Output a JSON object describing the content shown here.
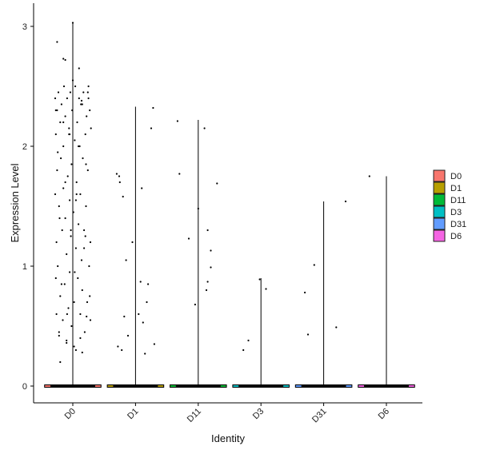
{
  "chart_data": {
    "type": "violin",
    "xlabel": "Identity",
    "ylabel": "Expression Level",
    "categories": [
      "D0",
      "D1",
      "D11",
      "D3",
      "D31",
      "D6"
    ],
    "ylim": [
      -0.18,
      3.2
    ],
    "yticks": [
      0,
      1,
      2,
      3
    ],
    "legend": {
      "position": "right",
      "entries": [
        {
          "label": "D0",
          "color": "#f8766d"
        },
        {
          "label": "D1",
          "color": "#b79f00"
        },
        {
          "label": "D11",
          "color": "#00ba38"
        },
        {
          "label": "D3",
          "color": "#00bfc4"
        },
        {
          "label": "D31",
          "color": "#619cff"
        },
        {
          "label": "D6",
          "color": "#f564e3"
        }
      ]
    },
    "violin_max": [
      3.03,
      2.33,
      2.22,
      0.9,
      1.54,
      1.75
    ],
    "points": [
      {
        "group": "D0",
        "offsets": [
          -0.28,
          -0.28,
          -0.27,
          -0.27,
          -0.26,
          -0.26,
          -0.25,
          -0.25,
          -0.24,
          -0.23,
          -0.22,
          -0.22,
          -0.2,
          -0.2,
          -0.19,
          -0.18,
          -0.17,
          -0.16,
          -0.15,
          -0.15,
          -0.14,
          -0.13,
          -0.12,
          -0.12,
          -0.1,
          -0.1,
          -0.09,
          -0.08,
          -0.07,
          -0.06,
          -0.05,
          -0.05,
          -0.04,
          -0.03,
          -0.02,
          -0.02,
          -0.01,
          0,
          0.01,
          0.02,
          0.03,
          0.04,
          0.05,
          0.05,
          0.06,
          0.07,
          0.08,
          0.09,
          0.1,
          0.11,
          0.12,
          0.12,
          0.13,
          0.14,
          0.15,
          0.16,
          0.17,
          0.18,
          0.19,
          0.2,
          0.21,
          0.22,
          0.23,
          0.24,
          0.25,
          0.26,
          0.27,
          0.28,
          0.28,
          0.29,
          -0.27,
          -0.24,
          -0.21,
          -0.18,
          -0.15,
          -0.12,
          -0.09,
          -0.06,
          -0.03,
          0,
          0.03,
          0.06,
          0.09,
          0.12,
          0.15,
          0.18,
          0.21,
          0.24,
          0.27,
          -0.25,
          -0.2,
          -0.15,
          -0.1,
          -0.05,
          0.05,
          0.1,
          0.15,
          0.2,
          0.25,
          -0.22,
          -0.12,
          0.02,
          0.14,
          0.22
        ],
        "values": [
          2.4,
          1.6,
          0.9,
          2.1,
          1.2,
          0.6,
          2.3,
          1.8,
          1.0,
          2.45,
          0.45,
          1.5,
          2.2,
          0.75,
          1.9,
          2.35,
          1.3,
          0.55,
          2.0,
          1.65,
          2.5,
          0.85,
          1.4,
          2.25,
          1.1,
          0.38,
          2.4,
          1.75,
          0.65,
          2.15,
          1.55,
          0.95,
          2.45,
          1.25,
          0.5,
          1.85,
          2.3,
          3.03,
          1.45,
          0.7,
          2.05,
          2.5,
          1.15,
          0.3,
          1.7,
          2.2,
          0.9,
          1.35,
          2.4,
          2.0,
          0.6,
          1.6,
          2.35,
          1.05,
          0.8,
          1.9,
          2.45,
          1.3,
          0.45,
          2.1,
          1.5,
          2.25,
          0.7,
          1.8,
          2.4,
          1.0,
          2.3,
          1.2,
          0.55,
          2.15,
          2.3,
          1.95,
          1.4,
          0.85,
          2.2,
          1.7,
          0.6,
          2.1,
          1.3,
          2.55,
          0.95,
          1.6,
          2.0,
          0.4,
          2.35,
          1.15,
          1.85,
          2.45,
          0.75,
          2.87,
          0.2,
          2.73,
          0.36,
          2.1,
          1.55,
          2.65,
          0.28,
          1.25,
          2.5,
          0.42,
          2.72,
          0.33,
          2.38,
          0.58
        ]
      },
      {
        "group": "D1",
        "offsets": [
          -0.3,
          -0.25,
          -0.2,
          -0.28,
          -0.22,
          -0.18,
          -0.12,
          -0.05,
          0.05,
          0.1,
          0.12,
          0.15,
          0.2,
          0.25,
          0.3,
          -0.15,
          0.08,
          0.18,
          -0.26,
          0.28
        ],
        "values": [
          1.77,
          1.7,
          1.58,
          0.33,
          0.3,
          0.58,
          0.42,
          1.2,
          0.6,
          1.65,
          0.53,
          0.27,
          0.85,
          2.15,
          0.35,
          1.05,
          0.87,
          0.7,
          1.75,
          2.32
        ]
      },
      {
        "group": "D11",
        "offsets": [
          -0.33,
          -0.3,
          -0.15,
          0.0,
          0.1,
          0.15,
          0.2,
          0.3,
          -0.05,
          0.15,
          0.13,
          0.2
        ],
        "values": [
          2.21,
          1.77,
          1.23,
          1.48,
          2.15,
          1.3,
          0.99,
          1.69,
          0.68,
          0.87,
          0.8,
          1.13
        ]
      },
      {
        "group": "D3",
        "offsets": [
          -0.28,
          -0.2,
          -0.02,
          0.08
        ],
        "values": [
          0.3,
          0.38,
          0.89,
          0.81
        ]
      },
      {
        "group": "D31",
        "offsets": [
          -0.3,
          -0.25,
          -0.15,
          0.2,
          0.35
        ],
        "values": [
          0.78,
          0.43,
          1.01,
          0.49,
          1.54
        ]
      },
      {
        "group": "D6",
        "offsets": [
          -0.27
        ],
        "values": [
          1.75
        ]
      }
    ]
  }
}
